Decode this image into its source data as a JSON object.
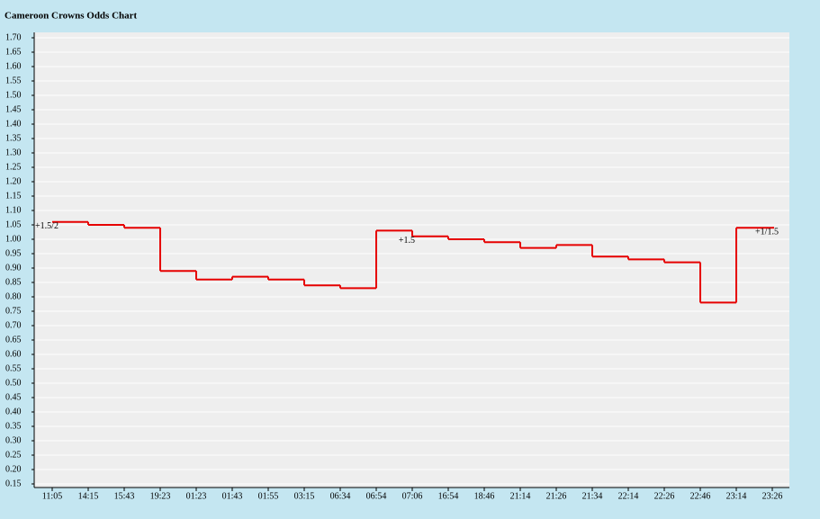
{
  "chart_data": {
    "type": "step-line",
    "title": "Cameroon Crowns Odds Chart",
    "categories": [
      "11:05",
      "14:15",
      "15:43",
      "19:23",
      "01:23",
      "01:43",
      "01:55",
      "03:15",
      "06:34",
      "06:54",
      "07:06",
      "16:54",
      "18:46",
      "21:14",
      "21:26",
      "21:34",
      "22:14",
      "22:26",
      "22:46",
      "23:14",
      "23:26"
    ],
    "series": [
      {
        "color": "#e60000",
        "values": [
          1.06,
          1.05,
          1.04,
          0.89,
          0.86,
          0.87,
          0.86,
          0.84,
          0.83,
          1.03,
          1.01,
          1.0,
          0.99,
          0.97,
          0.98,
          0.94,
          0.93,
          0.92,
          0.78,
          1.04,
          1.04
        ]
      }
    ],
    "ylim": [
      0.15,
      1.7
    ],
    "yticks": [
      0.15,
      {
        "value": 0.2,
        "label": "0.20"
      },
      0.25,
      {
        "value": 0.3,
        "label": "0.30"
      },
      0.35,
      {
        "value": 0.4,
        "label": "0.40"
      },
      0.45,
      {
        "value": 0.5,
        "label": "0.50"
      },
      0.55,
      {
        "value": 0.6,
        "label": "0.60"
      },
      0.65,
      {
        "value": 0.7,
        "label": "0.70"
      },
      0.75,
      {
        "value": 0.8,
        "label": "0.80"
      },
      0.85,
      {
        "value": 0.9,
        "label": "0.90"
      },
      0.95,
      {
        "value": 1.0,
        "label": "1.00"
      },
      1.05,
      {
        "value": 1.1,
        "label": "1.10"
      },
      1.15,
      {
        "value": 1.2,
        "label": "1.20"
      },
      1.25,
      {
        "value": 1.3,
        "label": "1.30"
      },
      1.35,
      {
        "value": 1.4,
        "label": "1.40"
      },
      1.45,
      {
        "value": 1.5,
        "label": "1.50"
      },
      1.55,
      {
        "value": 1.6,
        "label": "1.60"
      },
      1.65,
      {
        "value": 1.7,
        "label": "1.70"
      }
    ],
    "grid": true,
    "annotations": [
      {
        "x": "11:05",
        "text": "+1.5/2"
      },
      {
        "x": "07:06",
        "text": "+1.5"
      },
      {
        "x": "23:26",
        "text": "+1/1.5"
      }
    ]
  }
}
